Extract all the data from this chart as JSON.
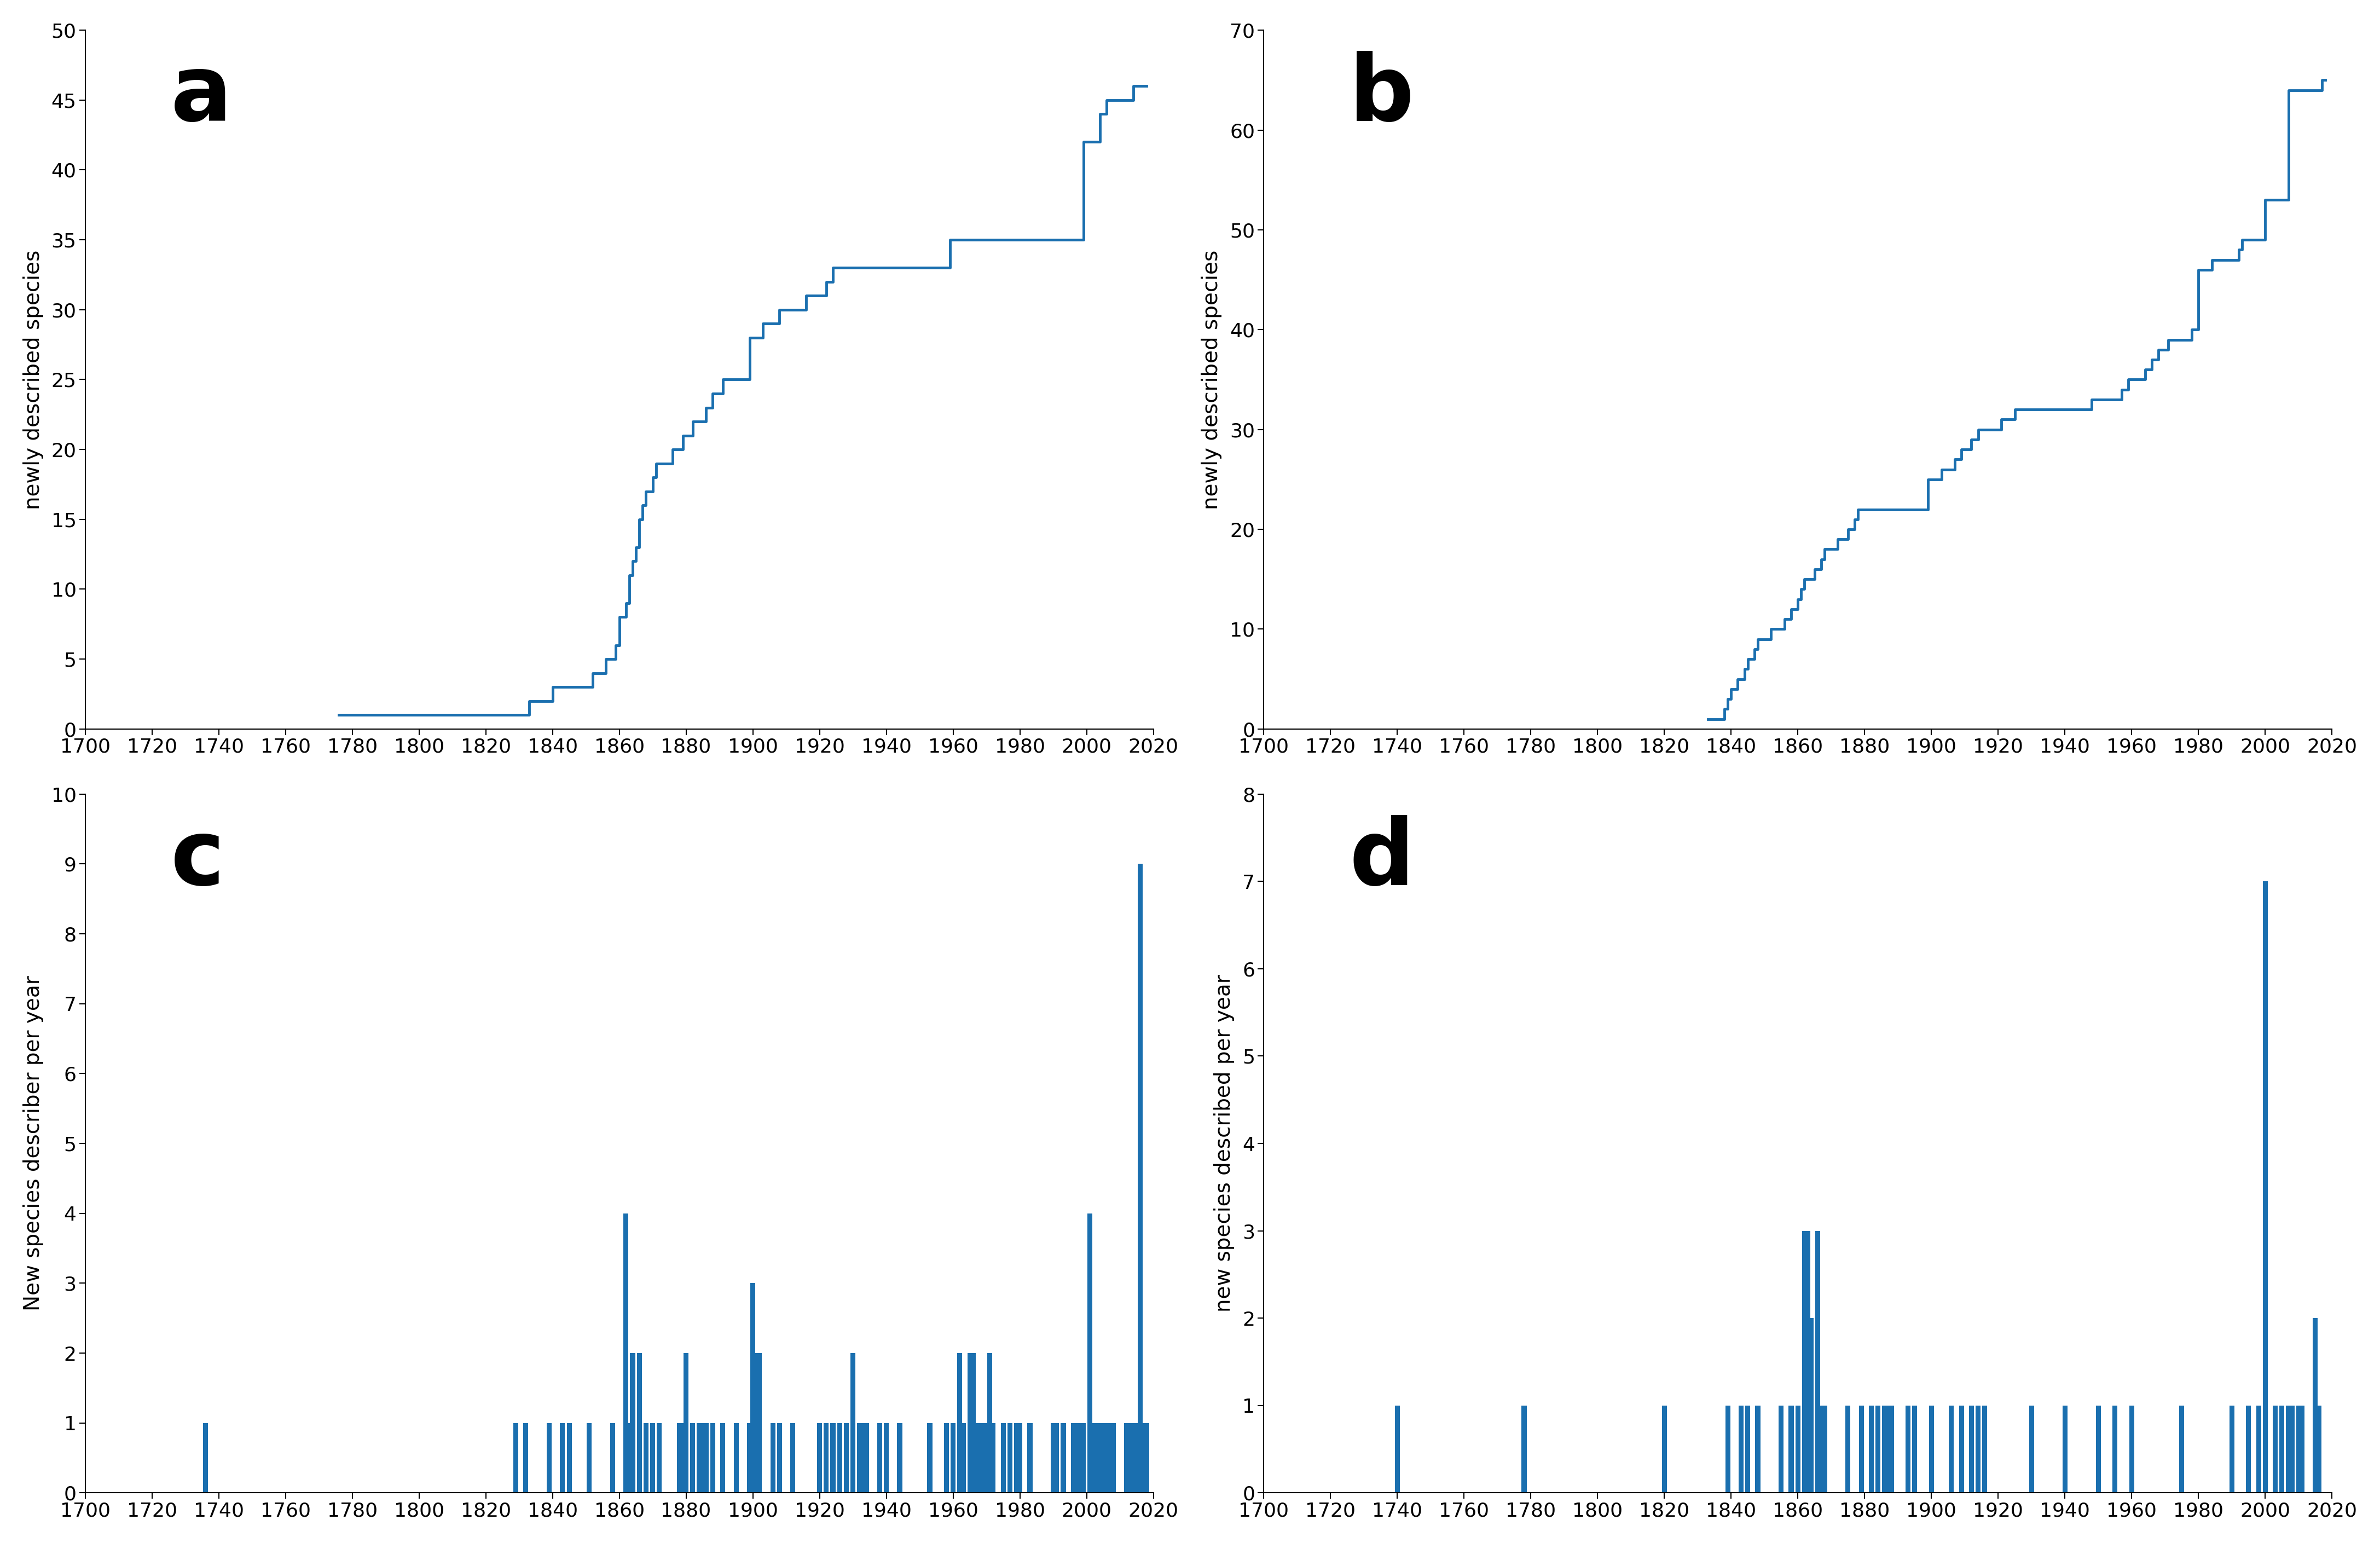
{
  "line_color": "#1a6faf",
  "bar_color": "#1a6faf",
  "bg_color": "#ffffff",
  "panel_a": {
    "label": "a",
    "ylabel": "newly described species",
    "xlim": [
      1700,
      2020
    ],
    "ylim": [
      0,
      50
    ],
    "yticks": [
      0,
      5,
      10,
      15,
      20,
      25,
      30,
      35,
      40,
      45,
      50
    ],
    "xticks": [
      1700,
      1720,
      1740,
      1760,
      1780,
      1800,
      1820,
      1840,
      1860,
      1880,
      1900,
      1920,
      1940,
      1960,
      1980,
      2000,
      2020
    ],
    "cumulative_data": {
      "years": [
        1776,
        1820,
        1821,
        1833,
        1834,
        1836,
        1839,
        1840,
        1843,
        1845,
        1846,
        1848,
        1850,
        1852,
        1853,
        1856,
        1858,
        1859,
        1860,
        1861,
        1862,
        1863,
        1864,
        1865,
        1866,
        1867,
        1868,
        1870,
        1871,
        1872,
        1874,
        1876,
        1878,
        1879,
        1880,
        1881,
        1882,
        1884,
        1885,
        1886,
        1887,
        1888,
        1890,
        1891,
        1893,
        1895,
        1897,
        1899,
        1900,
        1901,
        1902,
        1903,
        1904,
        1906,
        1908,
        1910,
        1912,
        1913,
        1914,
        1915,
        1916,
        1920,
        1922,
        1924,
        1925,
        1926,
        1928,
        1930,
        1931,
        1932,
        1933,
        1934,
        1938,
        1939,
        1940,
        1944,
        1947,
        1950,
        1951,
        1953,
        1954,
        1956,
        1958,
        1959,
        1960,
        1963,
        1965,
        1966,
        1967,
        1968,
        1969,
        1970,
        1971,
        1972,
        1973,
        1974,
        1975,
        1977,
        1979,
        1980,
        1983,
        1984,
        1985,
        1990,
        1991,
        1993,
        1996,
        1997,
        1998,
        1999,
        2001,
        2002,
        2003,
        2004,
        2005,
        2006,
        2007,
        2008,
        2012,
        2013,
        2014,
        2015,
        2016,
        2017,
        2018
      ],
      "values": [
        1,
        1,
        1,
        1,
        2,
        2,
        2,
        2,
        3,
        3,
        3,
        3,
        3,
        3,
        4,
        4,
        5,
        5,
        6,
        8,
        8,
        9,
        11,
        12,
        13,
        15,
        16,
        17,
        18,
        19,
        19,
        19,
        20,
        20,
        21,
        21,
        21,
        22,
        22,
        22,
        23,
        23,
        24,
        24,
        25,
        25,
        25,
        25,
        28,
        28,
        28,
        28,
        29,
        29,
        29,
        30,
        30,
        30,
        30,
        30,
        30,
        31,
        31,
        32,
        33,
        33,
        33,
        33,
        33,
        33,
        33,
        33,
        33,
        33,
        33,
        33,
        33,
        33,
        33,
        33,
        33,
        33,
        33,
        33,
        35,
        35,
        35,
        35,
        35,
        35,
        35,
        35,
        35,
        35,
        35,
        35,
        35,
        35,
        35,
        35,
        35,
        35,
        35,
        35,
        35,
        35,
        35,
        35,
        35,
        35,
        42,
        42,
        42,
        42,
        44,
        44,
        45,
        45,
        45,
        45,
        45,
        46,
        46,
        46,
        46
      ]
    }
  },
  "panel_b": {
    "label": "b",
    "ylabel": "newly described species",
    "xlim": [
      1700,
      2020
    ],
    "ylim": [
      0,
      70
    ],
    "yticks": [
      0,
      10,
      20,
      30,
      40,
      50,
      60,
      70
    ],
    "xticks": [
      1700,
      1720,
      1740,
      1760,
      1780,
      1800,
      1820,
      1840,
      1860,
      1880,
      1900,
      1920,
      1940,
      1960,
      1980,
      2000,
      2020
    ],
    "cumulative_data": {
      "years": [
        1833,
        1838,
        1839,
        1840,
        1841,
        1842,
        1843,
        1844,
        1845,
        1846,
        1847,
        1848,
        1850,
        1851,
        1852,
        1853,
        1854,
        1855,
        1856,
        1857,
        1858,
        1860,
        1861,
        1862,
        1863,
        1864,
        1865,
        1866,
        1867,
        1868,
        1869,
        1870,
        1871,
        1872,
        1873,
        1874,
        1875,
        1876,
        1877,
        1878,
        1879,
        1880,
        1881,
        1882,
        1883,
        1884,
        1885,
        1886,
        1887,
        1888,
        1889,
        1890,
        1891,
        1892,
        1893,
        1894,
        1895,
        1896,
        1897,
        1898,
        1899,
        1900,
        1901,
        1902,
        1903,
        1904,
        1905,
        1906,
        1907,
        1908,
        1909,
        1910,
        1911,
        1912,
        1913,
        1914,
        1920,
        1921,
        1925,
        1926,
        1927,
        1928,
        1930,
        1931,
        1932,
        1933,
        1935,
        1938,
        1940,
        1941,
        1944,
        1948,
        1950,
        1951,
        1952,
        1953,
        1955,
        1957,
        1958,
        1959,
        1960,
        1961,
        1962,
        1963,
        1964,
        1965,
        1966,
        1967,
        1968,
        1969,
        1970,
        1971,
        1972,
        1973,
        1975,
        1977,
        1978,
        1979,
        1980,
        1981,
        1982,
        1984,
        1985,
        1986,
        1987,
        1988,
        1992,
        1993,
        1994,
        1995,
        1996,
        1997,
        1998,
        2000,
        2001,
        2002,
        2003,
        2004,
        2005,
        2006,
        2007,
        2008,
        2009,
        2010,
        2011,
        2012,
        2013,
        2014,
        2015,
        2016,
        2017,
        2018
      ],
      "values": [
        1,
        1,
        2,
        3,
        4,
        4,
        5,
        5,
        6,
        7,
        7,
        8,
        9,
        9,
        9,
        10,
        10,
        10,
        10,
        11,
        11,
        12,
        13,
        14,
        15,
        15,
        15,
        16,
        16,
        17,
        18,
        18,
        18,
        18,
        19,
        19,
        19,
        20,
        20,
        21,
        22,
        22,
        22,
        22,
        22,
        22,
        22,
        22,
        22,
        22,
        22,
        22,
        22,
        22,
        22,
        22,
        22,
        22,
        22,
        22,
        22,
        25,
        25,
        25,
        25,
        26,
        26,
        26,
        26,
        27,
        27,
        28,
        28,
        28,
        29,
        29,
        30,
        30,
        31,
        32,
        32,
        32,
        32,
        32,
        32,
        32,
        32,
        32,
        32,
        32,
        32,
        32,
        33,
        33,
        33,
        33,
        33,
        33,
        34,
        34,
        35,
        35,
        35,
        35,
        35,
        36,
        36,
        37,
        37,
        38,
        38,
        38,
        39,
        39,
        39,
        39,
        39,
        40,
        40,
        46,
        46,
        46,
        47,
        47,
        47,
        47,
        47,
        48,
        49,
        49,
        49,
        49,
        49,
        49,
        53,
        53,
        53,
        53,
        53,
        53,
        53,
        64,
        64,
        64,
        64,
        64,
        64,
        64,
        64,
        64,
        64,
        65
      ]
    }
  },
  "panel_c": {
    "label": "c",
    "ylabel": "New species describer per year",
    "xlim": [
      1700,
      2020
    ],
    "ylim": [
      0,
      10
    ],
    "yticks": [
      0,
      1,
      2,
      3,
      4,
      5,
      6,
      7,
      8,
      9,
      10
    ],
    "xticks": [
      1700,
      1720,
      1740,
      1760,
      1780,
      1800,
      1820,
      1840,
      1860,
      1880,
      1900,
      1920,
      1940,
      1960,
      1980,
      2000,
      2020
    ],
    "bar_data": {
      "years": [
        1736,
        1829,
        1832,
        1839,
        1843,
        1845,
        1851,
        1858,
        1862,
        1863,
        1864,
        1866,
        1868,
        1870,
        1872,
        1878,
        1879,
        1880,
        1882,
        1884,
        1885,
        1886,
        1888,
        1891,
        1895,
        1899,
        1900,
        1901,
        1902,
        1906,
        1908,
        1912,
        1920,
        1922,
        1924,
        1926,
        1928,
        1930,
        1932,
        1933,
        1934,
        1938,
        1940,
        1944,
        1953,
        1958,
        1960,
        1962,
        1963,
        1965,
        1966,
        1967,
        1968,
        1969,
        1970,
        1971,
        1972,
        1975,
        1977,
        1979,
        1980,
        1983,
        1990,
        1991,
        1993,
        1996,
        1997,
        1998,
        1999,
        2001,
        2002,
        2003,
        2004,
        2005,
        2006,
        2007,
        2008,
        2012,
        2013,
        2014,
        2015,
        2016,
        2017,
        2018
      ],
      "values": [
        1,
        1,
        1,
        1,
        1,
        1,
        1,
        1,
        4,
        1,
        2,
        2,
        1,
        1,
        1,
        1,
        1,
        2,
        1,
        1,
        1,
        1,
        1,
        1,
        1,
        1,
        3,
        2,
        2,
        1,
        1,
        1,
        1,
        1,
        1,
        1,
        1,
        2,
        1,
        1,
        1,
        1,
        1,
        1,
        1,
        1,
        1,
        2,
        1,
        2,
        2,
        1,
        1,
        1,
        1,
        2,
        1,
        1,
        1,
        1,
        1,
        1,
        1,
        1,
        1,
        1,
        1,
        1,
        1,
        4,
        1,
        1,
        1,
        1,
        1,
        1,
        1,
        1,
        1,
        1,
        1,
        9,
        1,
        1
      ]
    }
  },
  "panel_d": {
    "label": "d",
    "ylabel": "new species described per year",
    "xlim": [
      1700,
      2020
    ],
    "ylim": [
      0,
      8
    ],
    "yticks": [
      0,
      1,
      2,
      3,
      4,
      5,
      6,
      7,
      8
    ],
    "xticks": [
      1700,
      1720,
      1740,
      1760,
      1780,
      1800,
      1820,
      1840,
      1860,
      1880,
      1900,
      1920,
      1940,
      1960,
      1980,
      2000,
      2020
    ],
    "bar_data": {
      "years": [
        1740,
        1778,
        1820,
        1839,
        1843,
        1845,
        1848,
        1855,
        1858,
        1860,
        1862,
        1863,
        1864,
        1866,
        1867,
        1868,
        1875,
        1879,
        1882,
        1884,
        1886,
        1887,
        1888,
        1893,
        1895,
        1900,
        1906,
        1909,
        1912,
        1914,
        1916,
        1930,
        1940,
        1950,
        1955,
        1960,
        1975,
        1990,
        1995,
        1998,
        2000,
        2003,
        2005,
        2007,
        2008,
        2010,
        2011,
        2015,
        2016
      ],
      "values": [
        1,
        1,
        1,
        1,
        1,
        1,
        1,
        1,
        1,
        1,
        3,
        3,
        2,
        3,
        1,
        1,
        1,
        1,
        1,
        1,
        1,
        1,
        1,
        1,
        1,
        1,
        1,
        1,
        1,
        1,
        1,
        1,
        1,
        1,
        1,
        1,
        1,
        1,
        1,
        1,
        7,
        1,
        1,
        1,
        1,
        1,
        1,
        2,
        1
      ]
    }
  }
}
